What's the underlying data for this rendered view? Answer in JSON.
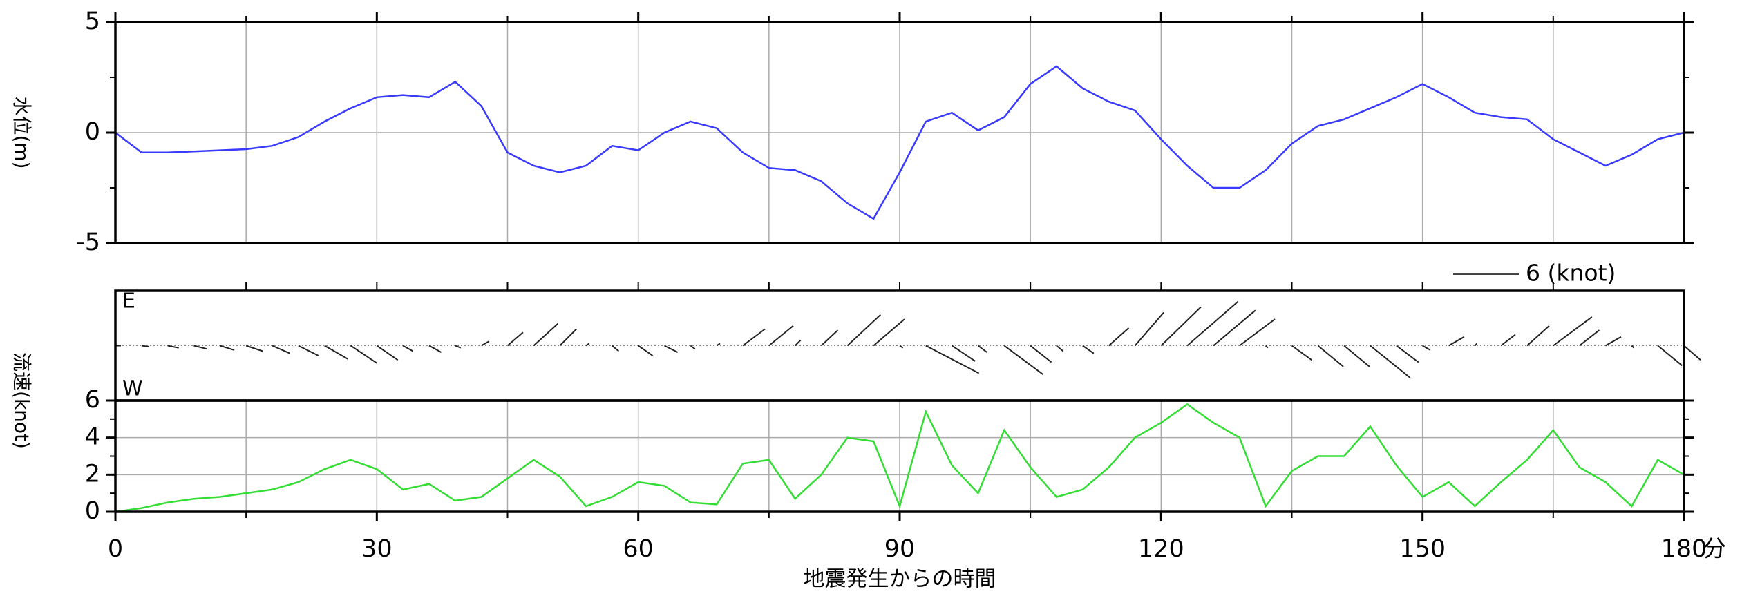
{
  "chart_data": [
    {
      "type": "line",
      "ylabel": "水位(m)",
      "color": "#3a3aff",
      "x": [
        0,
        3,
        6,
        9,
        12,
        15,
        18,
        21,
        24,
        27,
        30,
        33,
        36,
        39,
        42,
        45,
        48,
        51,
        54,
        57,
        60,
        63,
        66,
        69,
        72,
        75,
        78,
        81,
        84,
        87,
        90,
        93,
        96,
        99,
        102,
        105,
        108,
        111,
        114,
        117,
        120,
        123,
        126,
        129,
        132,
        135,
        138,
        141,
        144,
        147,
        150,
        153,
        156,
        159,
        162,
        165,
        168,
        171,
        174,
        177,
        180
      ],
      "values": [
        0,
        -0.9,
        -0.9,
        -0.85,
        -0.8,
        -0.75,
        -0.6,
        -0.2,
        0.5,
        1.1,
        1.6,
        1.7,
        1.6,
        2.3,
        1.2,
        -0.9,
        -1.5,
        -1.8,
        -1.5,
        -0.6,
        -0.8,
        0,
        0.5,
        0.2,
        -0.9,
        -1.6,
        -1.7,
        -2.2,
        -3.2,
        -3.9,
        -1.8,
        0.5,
        0.9,
        0.1,
        0.7,
        2.2,
        3.0,
        2.0,
        1.4,
        1.0,
        -0.3,
        -1.5,
        -2.5,
        -2.5,
        -1.7,
        -0.5,
        0.3,
        0.6,
        1.1,
        1.6,
        2.2,
        1.6,
        0.9,
        0.7,
        0.6,
        -0.3,
        -0.9,
        -1.5,
        -1.0,
        -0.3,
        0
      ],
      "xlim": [
        0,
        180
      ],
      "ylim": [
        -5,
        5
      ],
      "yticks": [
        -5,
        0,
        5
      ],
      "yminor": [
        -2.5,
        2.5
      ],
      "xgrid": [
        15,
        30,
        45,
        60,
        75,
        90,
        105,
        120,
        135,
        150,
        165
      ],
      "grid": true
    },
    {
      "type": "stick",
      "top_label": "E",
      "bottom_label": "W",
      "color": "#222222",
      "scale_label": "6 (knot)",
      "scale_value": 6,
      "x": [
        0,
        3,
        6,
        9,
        12,
        15,
        18,
        21,
        24,
        27,
        30,
        33,
        36,
        39,
        42,
        45,
        48,
        51,
        54,
        57,
        60,
        63,
        66,
        69,
        72,
        75,
        78,
        81,
        84,
        87,
        90,
        93,
        96,
        99,
        102,
        105,
        108,
        111,
        114,
        117,
        120,
        123,
        126,
        129,
        132,
        135,
        138,
        141,
        144,
        147,
        150,
        153,
        156,
        159,
        162,
        165,
        168,
        171,
        174,
        177,
        180
      ],
      "east": [
        0,
        -0.1,
        -0.2,
        -0.3,
        -0.4,
        -0.5,
        -0.7,
        -0.9,
        -1.2,
        -1.6,
        -1.3,
        -0.5,
        -0.6,
        -0.2,
        0.4,
        1.2,
        2.0,
        1.5,
        0.2,
        -0.5,
        -0.9,
        -0.6,
        -0.3,
        0.2,
        1.5,
        1.8,
        0.5,
        1.4,
        2.8,
        2.4,
        -0.2,
        -2.5,
        -1.4,
        -0.6,
        -2.6,
        -1.5,
        -0.5,
        -0.7,
        1.6,
        3.0,
        3.5,
        4.0,
        3.2,
        2.4,
        -0.2,
        -1.3,
        -1.9,
        -1.9,
        -2.9,
        -1.5,
        -0.4,
        0.8,
        0.2,
        1.0,
        1.8,
        2.6,
        1.4,
        0.8,
        -0.2,
        -1.8,
        -1.3
      ],
      "north": [
        0.5,
        0.7,
        1.0,
        1.2,
        1.3,
        1.5,
        1.6,
        1.8,
        2.1,
        2.4,
        1.9,
        0.9,
        1.1,
        0.5,
        0.7,
        1.4,
        2.2,
        1.5,
        0.3,
        0.6,
        1.3,
        1.2,
        0.4,
        0.3,
        2.0,
        2.2,
        0.5,
        1.5,
        3.0,
        2.8,
        0.3,
        4.8,
        2.1,
        0.8,
        3.5,
        1.9,
        0.6,
        1.0,
        1.8,
        2.6,
        3.6,
        4.6,
        3.8,
        3.2,
        0.2,
        1.8,
        2.3,
        2.3,
        3.6,
        2.0,
        0.7,
        1.4,
        0.2,
        1.3,
        2.0,
        3.5,
        1.8,
        1.4,
        0.2,
        2.2,
        1.5
      ]
    },
    {
      "type": "line",
      "ylabel": "流速(knot)",
      "color": "#33dd33",
      "x": [
        0,
        3,
        6,
        9,
        12,
        15,
        18,
        21,
        24,
        27,
        30,
        33,
        36,
        39,
        42,
        45,
        48,
        51,
        54,
        57,
        60,
        63,
        66,
        69,
        72,
        75,
        78,
        81,
        84,
        87,
        90,
        93,
        96,
        99,
        102,
        105,
        108,
        111,
        114,
        117,
        120,
        123,
        126,
        129,
        132,
        135,
        138,
        141,
        144,
        147,
        150,
        153,
        156,
        159,
        162,
        165,
        168,
        171,
        174,
        177,
        180
      ],
      "values": [
        0,
        0.2,
        0.5,
        0.7,
        0.8,
        1.0,
        1.2,
        1.6,
        2.3,
        2.8,
        2.3,
        1.2,
        1.5,
        0.6,
        0.8,
        1.8,
        2.8,
        1.9,
        0.3,
        0.8,
        1.6,
        1.4,
        0.5,
        0.4,
        2.6,
        2.8,
        0.7,
        2.0,
        4.0,
        3.8,
        0.3,
        5.4,
        2.5,
        1.0,
        4.4,
        2.4,
        0.8,
        1.2,
        2.4,
        4.0,
        4.8,
        5.8,
        4.8,
        4.0,
        0.3,
        2.2,
        3.0,
        3.0,
        4.6,
        2.5,
        0.8,
        1.6,
        0.3,
        1.6,
        2.8,
        4.4,
        2.4,
        1.6,
        0.3,
        2.8,
        2.0
      ],
      "xlim": [
        0,
        180
      ],
      "ylim": [
        0,
        6
      ],
      "yticks": [
        0,
        2,
        4,
        6
      ],
      "yminor": [
        1,
        3,
        5
      ],
      "xticks": [
        0,
        30,
        60,
        90,
        120,
        150,
        180
      ],
      "xgrid": [
        15,
        30,
        45,
        60,
        75,
        90,
        105,
        120,
        135,
        150,
        165
      ],
      "xunit": "分",
      "xlabel": "地震発生からの時間",
      "grid": true
    }
  ]
}
